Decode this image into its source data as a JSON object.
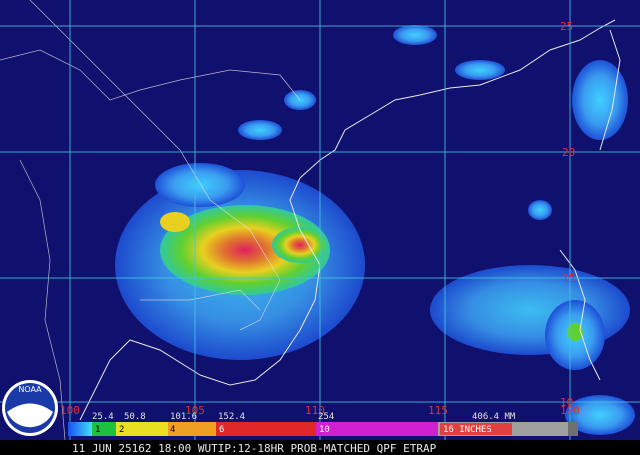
{
  "map": {
    "lat_labels": [
      "25",
      "20",
      "15",
      "10"
    ],
    "lon_labels": [
      "100",
      "105",
      "110",
      "115",
      "120"
    ],
    "legend": {
      "mm_labels": [
        "25.4",
        "50.8",
        "101.6",
        "152.4",
        "254",
        "406.4 MM"
      ],
      "inch_labels": [
        "1",
        "2",
        "4",
        "6",
        "10",
        "16 INCHES"
      ]
    },
    "caption": "11 JUN 25162 18:00 WUTIP:12-18HR PROB-MATCHED QPF ETRAP",
    "logo": "NOAA"
  }
}
